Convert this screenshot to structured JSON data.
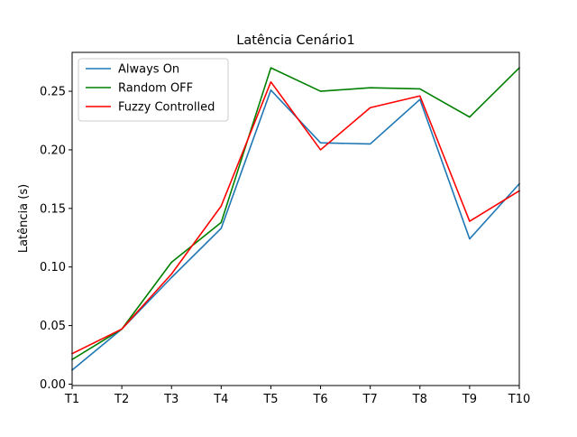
{
  "chart_data": {
    "type": "line",
    "title": "Latência Cenário1",
    "xlabel": "",
    "ylabel": "Latência (s)",
    "categories": [
      "T1",
      "T2",
      "T3",
      "T4",
      "T5",
      "T6",
      "T7",
      "T8",
      "T9",
      "T10"
    ],
    "ylim": [
      -0.0012,
      0.2832
    ],
    "yticks": [
      0.0,
      0.05,
      0.1,
      0.15,
      0.2,
      0.25
    ],
    "ytick_labels": [
      "0.00",
      "0.05",
      "0.10",
      "0.15",
      "0.20",
      "0.25"
    ],
    "grid": false,
    "legend_position": "top-left",
    "series": [
      {
        "name": "Always On",
        "color": "#1f77b4",
        "values": [
          0.012,
          0.047,
          0.091,
          0.133,
          0.251,
          0.206,
          0.205,
          0.243,
          0.124,
          0.171
        ]
      },
      {
        "name": "Random OFF",
        "color": "#008000",
        "values": [
          0.021,
          0.047,
          0.104,
          0.138,
          0.27,
          0.25,
          0.253,
          0.252,
          0.228,
          0.27
        ]
      },
      {
        "name": "Fuzzy Controlled",
        "color": "#ff0000",
        "values": [
          0.026,
          0.047,
          0.094,
          0.152,
          0.258,
          0.2,
          0.236,
          0.246,
          0.139,
          0.165
        ]
      }
    ]
  }
}
